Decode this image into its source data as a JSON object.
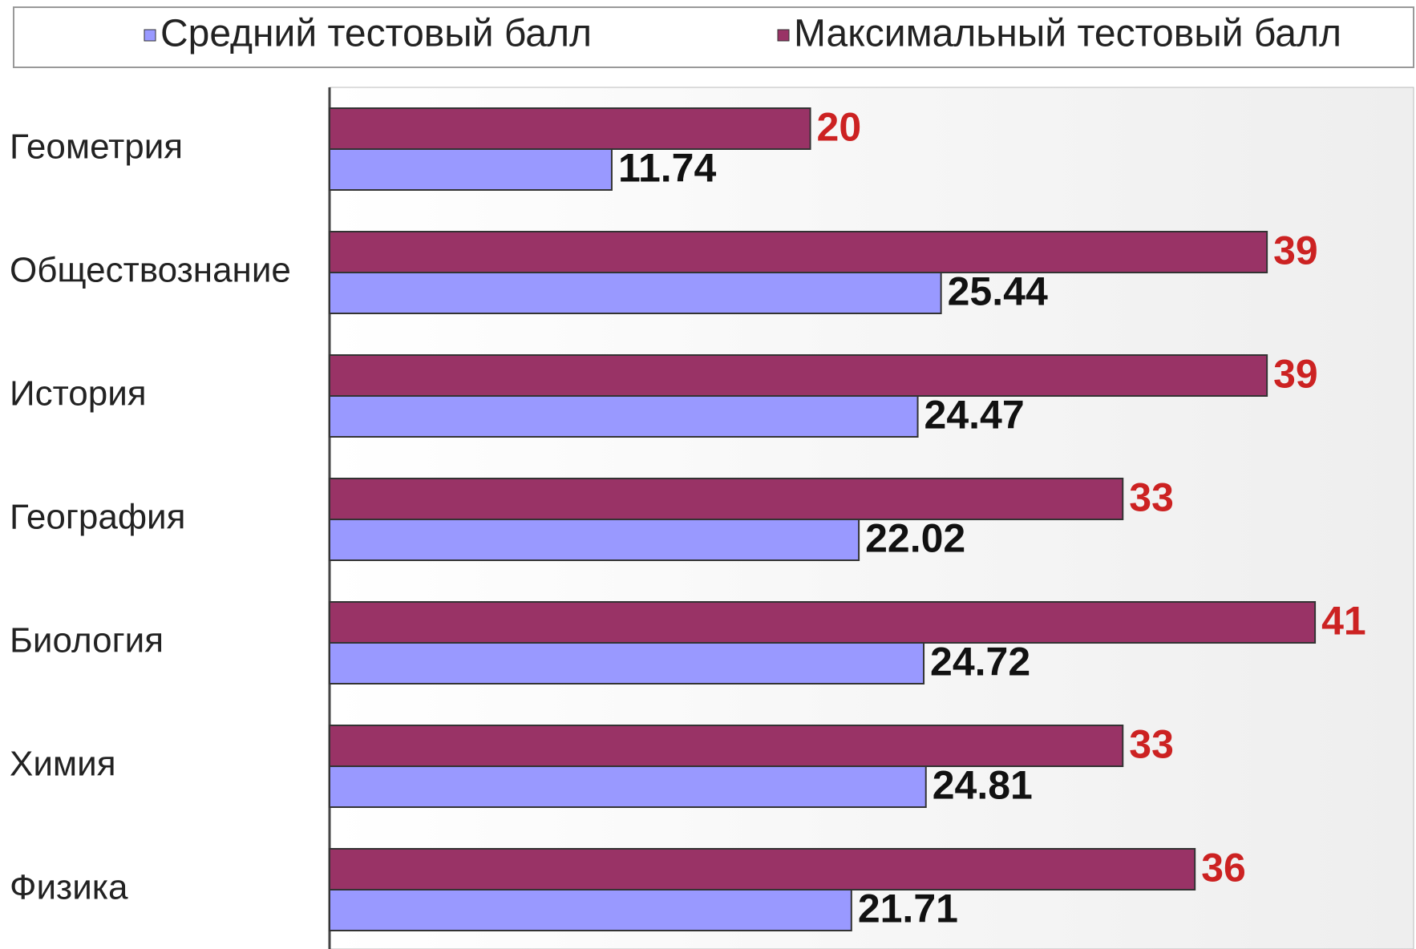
{
  "chart_data": {
    "type": "bar",
    "orientation": "horizontal",
    "categories": [
      "Геометрия",
      "Обществознание",
      "История",
      "География",
      "Биология",
      "Химия",
      "Физика"
    ],
    "series": [
      {
        "name": "Средний тестовый балл",
        "color": "#9999ff",
        "label_color": "#111111",
        "values": [
          11.74,
          25.44,
          24.47,
          22.02,
          24.72,
          24.81,
          21.71
        ]
      },
      {
        "name": "Максимальный тестовый балл",
        "color": "#993366",
        "label_color": "#cc2222",
        "values": [
          20,
          39,
          39,
          33,
          41,
          33,
          36
        ]
      }
    ],
    "xlim": [
      0,
      45
    ],
    "legend": "top"
  }
}
